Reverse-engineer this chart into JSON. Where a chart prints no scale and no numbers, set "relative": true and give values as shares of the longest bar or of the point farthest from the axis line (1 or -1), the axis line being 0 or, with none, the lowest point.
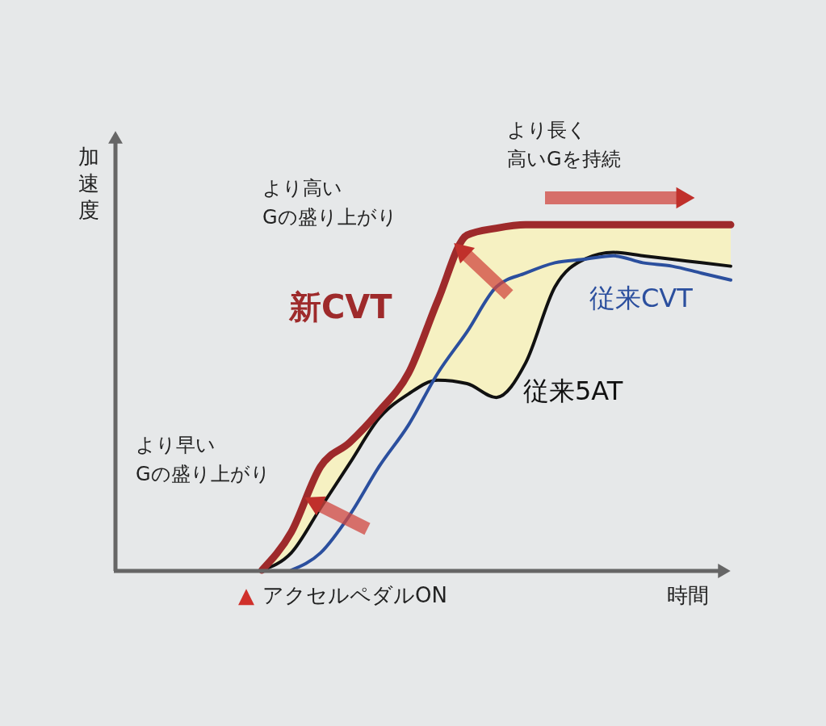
{
  "chart_data": {
    "type": "line",
    "relative": true,
    "xlabel": "時間",
    "ylabel": "加速度",
    "categories": [
      null,
      null,
      null,
      null,
      null,
      null,
      null,
      null,
      null,
      null,
      null,
      null,
      null,
      null,
      null,
      null,
      null,
      null,
      null,
      null,
      null,
      null
    ],
    "series": [
      {
        "name": "従来5AT",
        "color": "#111111",
        "values": [
          null,
          null,
          null,
          null,
          null,
          0,
          0.05,
          0.18,
          0.31,
          0.44,
          0.51,
          0.55,
          0.54,
          0.5,
          0.6,
          0.82,
          0.9,
          0.92,
          0.91,
          0.9,
          0.89,
          0.88
        ]
      },
      {
        "name": "従来CVT",
        "color": "#2b4f9e",
        "values": [
          null,
          null,
          null,
          null,
          null,
          null,
          0,
          0.05,
          0.16,
          0.3,
          0.42,
          0.57,
          0.69,
          0.82,
          0.86,
          0.89,
          0.9,
          0.91,
          0.89,
          0.88,
          0.86,
          0.84
        ]
      },
      {
        "name": "新CVT",
        "color": "#9e2a2b",
        "values": [
          null,
          null,
          null,
          null,
          null,
          0,
          0.11,
          0.3,
          0.37,
          0.46,
          0.57,
          0.78,
          0.97,
          0.99,
          1,
          1,
          1,
          1,
          1,
          1,
          1,
          1
        ],
        "lower": [
          null,
          null,
          null,
          null,
          null,
          0,
          0.05,
          0.18,
          0.31,
          0.44,
          0.51,
          0.55,
          0.54,
          0.5,
          0.6,
          0.82,
          0.9,
          0.92,
          0.91,
          0.9,
          0.89,
          0.88
        ],
        "upper": [
          null,
          null,
          null,
          null,
          null,
          0,
          0.11,
          0.3,
          0.37,
          0.46,
          0.57,
          0.78,
          0.97,
          0.99,
          1,
          1,
          1,
          1,
          1,
          1,
          1,
          1
        ]
      }
    ],
    "annotations": [
      "より早いGの盛り上がり",
      "より高いGの盛り上がり",
      "より長く高いGを持続",
      "▲アクセルペダルON"
    ]
  }
}
